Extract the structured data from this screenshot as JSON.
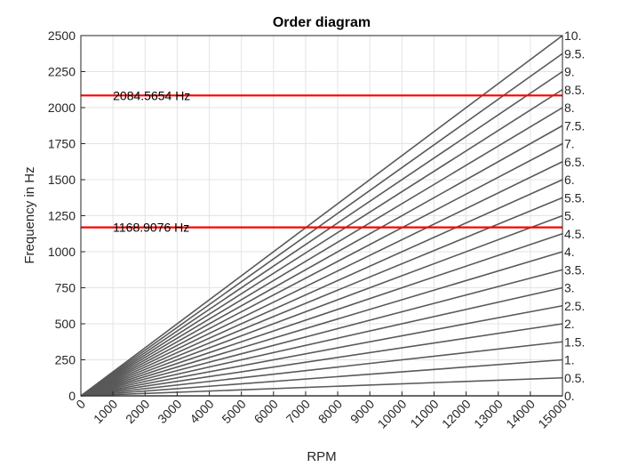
{
  "chart_data": {
    "type": "line",
    "title": "Order diagram",
    "xlabel": "RPM",
    "ylabel": "Frequency in Hz",
    "xlim": [
      0,
      15000
    ],
    "ylim": [
      0,
      2500
    ],
    "x_ticks": [
      0,
      1000,
      2000,
      3000,
      4000,
      5000,
      6000,
      7000,
      8000,
      9000,
      10000,
      11000,
      12000,
      13000,
      14000,
      15000
    ],
    "y_ticks": [
      0,
      250,
      500,
      750,
      1000,
      1250,
      1500,
      1750,
      2000,
      2250,
      2500
    ],
    "grid": true,
    "orders": [
      0,
      0.5,
      1,
      1.5,
      2,
      2.5,
      3,
      3.5,
      4,
      4.5,
      5,
      5.5,
      6,
      6.5,
      7,
      7.5,
      8,
      8.5,
      9,
      9.5,
      10
    ],
    "order_labels": [
      "0.",
      "0.5.",
      "1.",
      "1.5.",
      "2.",
      "2.5.",
      "3.",
      "3.5.",
      "4.",
      "4.5.",
      "5.",
      "5.5.",
      "6.",
      "6.5.",
      "7.",
      "7.5.",
      "8.",
      "8.5.",
      "9.",
      "9.5.",
      "10."
    ],
    "line_color": "#595959",
    "hlines": [
      {
        "y": 2084.5654,
        "label": "2084.5654 Hz",
        "color": "#ff0000"
      },
      {
        "y": 1168.9076,
        "label": "1168.9076 Hz",
        "color": "#ff0000"
      }
    ]
  }
}
